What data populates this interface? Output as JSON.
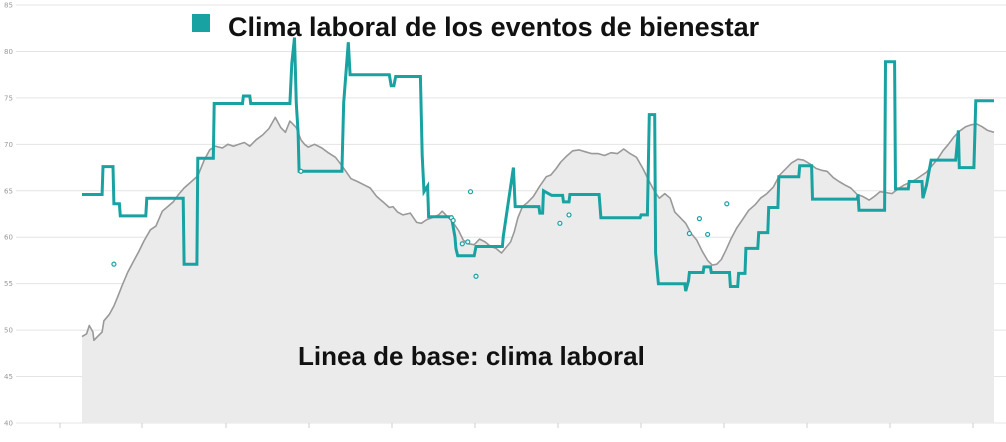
{
  "chart_data": {
    "type": "line",
    "title": "",
    "xlabel": "",
    "ylabel": "",
    "ylim": [
      40,
      85
    ],
    "yticks": [
      40,
      45,
      50,
      55,
      60,
      65,
      70,
      75,
      80,
      85
    ],
    "xlim": [
      0,
      100
    ],
    "grid": true,
    "legend_position": "top",
    "annotation": "Linea de base: clima laboral",
    "colors": {
      "events": "#18a2a2",
      "baseline_line": "#999999",
      "baseline_fill": "#ebebeb"
    },
    "series": [
      {
        "name": "Clima laboral de los eventos de bienestar",
        "style": "step",
        "points": [
          [
            0,
            64.6
          ],
          [
            2.2,
            64.6
          ],
          [
            2.3,
            67.6
          ],
          [
            3.4,
            67.6
          ],
          [
            3.5,
            63.6
          ],
          [
            4.1,
            63.6
          ],
          [
            4.2,
            62.3
          ],
          [
            7.0,
            62.3
          ],
          [
            7.1,
            64.2
          ],
          [
            11.1,
            64.2
          ],
          [
            11.2,
            57.1
          ],
          [
            12.6,
            57.1
          ],
          [
            12.7,
            68.5
          ],
          [
            14.4,
            68.5
          ],
          [
            14.5,
            74.4
          ],
          [
            17.6,
            74.4
          ],
          [
            17.7,
            75.2
          ],
          [
            18.4,
            75.2
          ],
          [
            18.5,
            74.4
          ],
          [
            22.8,
            74.4
          ],
          [
            23.0,
            78.7
          ],
          [
            23.3,
            81.5
          ],
          [
            23.5,
            74.4
          ],
          [
            23.7,
            71.3
          ],
          [
            23.8,
            67.1
          ],
          [
            28.5,
            67.1
          ],
          [
            28.7,
            74.5
          ],
          [
            29.2,
            81.0
          ],
          [
            29.4,
            77.5
          ],
          [
            31.0,
            77.5
          ],
          [
            33.7,
            77.5
          ],
          [
            33.9,
            76.3
          ],
          [
            34.2,
            76.3
          ],
          [
            34.4,
            77.3
          ],
          [
            37.1,
            77.3
          ],
          [
            37.3,
            68.8
          ],
          [
            37.5,
            64.9
          ],
          [
            37.9,
            65.5
          ],
          [
            38.0,
            62.2
          ],
          [
            40.5,
            62.2
          ],
          [
            40.9,
            60.0
          ],
          [
            41.0,
            58.8
          ],
          [
            41.2,
            58.0
          ],
          [
            43.0,
            58.0
          ],
          [
            43.2,
            59.0
          ],
          [
            46.1,
            59.0
          ],
          [
            46.2,
            60.1
          ],
          [
            47.3,
            67.5
          ],
          [
            47.5,
            63.3
          ],
          [
            50.1,
            63.3
          ],
          [
            50.2,
            62.6
          ],
          [
            50.5,
            62.6
          ],
          [
            50.6,
            65.0
          ],
          [
            51.5,
            64.5
          ],
          [
            52.7,
            64.5
          ],
          [
            52.8,
            63.8
          ],
          [
            53.4,
            63.8
          ],
          [
            53.5,
            64.6
          ],
          [
            56.7,
            64.6
          ],
          [
            56.9,
            62.1
          ],
          [
            61.2,
            62.1
          ],
          [
            61.3,
            62.4
          ],
          [
            62.0,
            62.4
          ],
          [
            62.2,
            73.2
          ],
          [
            62.8,
            73.2
          ],
          [
            62.9,
            58.3
          ],
          [
            63.2,
            55.0
          ],
          [
            66.1,
            55.0
          ],
          [
            66.2,
            54.2
          ],
          [
            66.5,
            55.3
          ],
          [
            66.6,
            56.2
          ],
          [
            68.1,
            56.2
          ],
          [
            68.2,
            56.8
          ],
          [
            68.9,
            56.8
          ],
          [
            69.0,
            56.2
          ],
          [
            71.0,
            56.2
          ],
          [
            71.1,
            54.7
          ],
          [
            71.9,
            54.7
          ],
          [
            72.0,
            56.1
          ],
          [
            72.7,
            56.1
          ],
          [
            72.8,
            58.8
          ],
          [
            74.1,
            58.8
          ],
          [
            74.2,
            60.5
          ],
          [
            75.2,
            60.5
          ],
          [
            75.3,
            63.2
          ],
          [
            76.3,
            63.2
          ],
          [
            76.4,
            66.5
          ],
          [
            78.6,
            66.5
          ],
          [
            78.7,
            67.7
          ],
          [
            80.0,
            67.7
          ],
          [
            80.1,
            64.1
          ],
          [
            85.0,
            64.1
          ],
          [
            85.1,
            64.6
          ],
          [
            85.2,
            62.9
          ],
          [
            88.0,
            62.9
          ],
          [
            88.1,
            78.9
          ],
          [
            89.1,
            78.9
          ],
          [
            89.2,
            65.2
          ],
          [
            90.6,
            65.2
          ],
          [
            90.7,
            66.0
          ],
          [
            92.1,
            66.0
          ],
          [
            92.2,
            64.2
          ],
          [
            92.6,
            65.6
          ],
          [
            93.1,
            68.3
          ],
          [
            95.8,
            68.3
          ],
          [
            96.1,
            71.5
          ],
          [
            96.2,
            67.5
          ],
          [
            97.8,
            67.5
          ],
          [
            98.0,
            74.7
          ],
          [
            100,
            74.7
          ]
        ],
        "markers": [
          [
            3.5,
            57.1
          ],
          [
            24.0,
            67.1
          ],
          [
            40.5,
            62.1
          ],
          [
            40.7,
            61.8
          ],
          [
            41.7,
            59.3
          ],
          [
            42.3,
            59.5
          ],
          [
            42.6,
            64.9
          ],
          [
            43.2,
            55.8
          ],
          [
            52.4,
            61.5
          ],
          [
            53.4,
            62.4
          ],
          [
            66.6,
            60.4
          ],
          [
            67.7,
            62.0
          ],
          [
            68.6,
            60.3
          ],
          [
            70.7,
            63.6
          ]
        ]
      },
      {
        "name": "Linea de base: clima laboral",
        "style": "area",
        "points": [
          [
            0,
            49.3
          ],
          [
            0.5,
            49.6
          ],
          [
            0.8,
            50.5
          ],
          [
            1.2,
            49.8
          ],
          [
            1.3,
            48.9
          ],
          [
            1.7,
            49.3
          ],
          [
            2.2,
            49.8
          ],
          [
            2.4,
            51.0
          ],
          [
            3.0,
            51.7
          ],
          [
            3.5,
            52.6
          ],
          [
            4.0,
            53.8
          ],
          [
            4.4,
            54.8
          ],
          [
            5.0,
            56.2
          ],
          [
            5.7,
            57.5
          ],
          [
            6.2,
            58.4
          ],
          [
            6.8,
            59.6
          ],
          [
            7.5,
            60.8
          ],
          [
            8.1,
            61.2
          ],
          [
            8.8,
            62.8
          ],
          [
            9.4,
            63.3
          ],
          [
            10.0,
            63.8
          ],
          [
            10.5,
            64.5
          ],
          [
            11.2,
            65.3
          ],
          [
            11.9,
            65.9
          ],
          [
            12.7,
            66.6
          ],
          [
            13.4,
            68.3
          ],
          [
            14.0,
            69.4
          ],
          [
            14.6,
            69.8
          ],
          [
            15.4,
            69.6
          ],
          [
            16.0,
            70.0
          ],
          [
            16.6,
            69.8
          ],
          [
            17.2,
            70.0
          ],
          [
            17.8,
            70.2
          ],
          [
            18.4,
            69.8
          ],
          [
            19.1,
            70.5
          ],
          [
            19.8,
            71.0
          ],
          [
            20.5,
            71.7
          ],
          [
            21.2,
            72.9
          ],
          [
            21.8,
            71.8
          ],
          [
            22.3,
            71.3
          ],
          [
            22.8,
            72.5
          ],
          [
            23.5,
            71.8
          ],
          [
            24.0,
            70.5
          ],
          [
            24.4,
            70.0
          ],
          [
            24.8,
            69.7
          ],
          [
            25.5,
            70.0
          ],
          [
            26.3,
            69.6
          ],
          [
            27.0,
            69.1
          ],
          [
            27.8,
            68.6
          ],
          [
            28.5,
            67.7
          ],
          [
            29.0,
            67.0
          ],
          [
            29.5,
            66.3
          ],
          [
            30.2,
            66.0
          ],
          [
            31.0,
            65.6
          ],
          [
            31.6,
            65.3
          ],
          [
            32.3,
            64.4
          ],
          [
            33.0,
            63.8
          ],
          [
            33.7,
            63.2
          ],
          [
            34.1,
            63.3
          ],
          [
            34.6,
            62.7
          ],
          [
            35.2,
            62.4
          ],
          [
            36.0,
            62.6
          ],
          [
            36.7,
            61.6
          ],
          [
            37.2,
            61.5
          ],
          [
            37.8,
            61.9
          ],
          [
            38.4,
            62.1
          ],
          [
            39.1,
            62.4
          ],
          [
            39.5,
            62.8
          ],
          [
            40.0,
            62.3
          ],
          [
            40.6,
            61.7
          ],
          [
            41.3,
            60.7
          ],
          [
            41.8,
            59.7
          ],
          [
            42.3,
            59.3
          ],
          [
            43.0,
            59.2
          ],
          [
            43.6,
            59.8
          ],
          [
            44.2,
            59.5
          ],
          [
            44.8,
            59.0
          ],
          [
            45.4,
            58.8
          ],
          [
            46.0,
            58.3
          ],
          [
            46.5,
            58.9
          ],
          [
            47.0,
            59.5
          ],
          [
            47.4,
            60.6
          ],
          [
            47.8,
            62.1
          ],
          [
            48.3,
            63.3
          ],
          [
            48.8,
            63.7
          ],
          [
            49.5,
            64.4
          ],
          [
            50.2,
            65.5
          ],
          [
            50.9,
            66.5
          ],
          [
            51.4,
            66.7
          ],
          [
            52.0,
            67.4
          ],
          [
            52.5,
            68.1
          ],
          [
            53.1,
            68.7
          ],
          [
            53.8,
            69.3
          ],
          [
            54.5,
            69.4
          ],
          [
            55.2,
            69.2
          ],
          [
            55.9,
            69.0
          ],
          [
            56.6,
            69.0
          ],
          [
            57.3,
            68.8
          ],
          [
            58.0,
            69.1
          ],
          [
            58.7,
            69.0
          ],
          [
            59.4,
            69.5
          ],
          [
            60.1,
            69.0
          ],
          [
            60.8,
            68.6
          ],
          [
            61.5,
            67.4
          ],
          [
            62.2,
            66.0
          ],
          [
            62.8,
            64.9
          ],
          [
            63.3,
            64.2
          ],
          [
            63.9,
            64.7
          ],
          [
            64.5,
            64.2
          ],
          [
            65.0,
            62.7
          ],
          [
            65.6,
            62.1
          ],
          [
            66.2,
            61.5
          ],
          [
            66.8,
            60.4
          ],
          [
            67.4,
            59.7
          ],
          [
            68.0,
            58.5
          ],
          [
            68.6,
            57.5
          ],
          [
            69.1,
            57.0
          ],
          [
            69.6,
            57.1
          ],
          [
            70.1,
            57.6
          ],
          [
            70.6,
            58.6
          ],
          [
            71.2,
            59.9
          ],
          [
            71.8,
            61.0
          ],
          [
            72.5,
            62.0
          ],
          [
            73.1,
            62.9
          ],
          [
            73.8,
            63.5
          ],
          [
            74.4,
            64.2
          ],
          [
            75.1,
            64.7
          ],
          [
            75.8,
            65.4
          ],
          [
            76.5,
            66.7
          ],
          [
            77.2,
            67.4
          ],
          [
            77.8,
            68.0
          ],
          [
            78.5,
            68.4
          ],
          [
            79.1,
            68.3
          ],
          [
            79.8,
            67.9
          ],
          [
            80.5,
            67.4
          ],
          [
            81.1,
            67.2
          ],
          [
            81.7,
            67.1
          ],
          [
            82.4,
            66.4
          ],
          [
            83.0,
            66.0
          ],
          [
            83.7,
            65.6
          ],
          [
            84.3,
            65.3
          ],
          [
            85.0,
            64.6
          ],
          [
            85.6,
            64.4
          ],
          [
            86.3,
            64.0
          ],
          [
            86.9,
            64.4
          ],
          [
            87.5,
            64.9
          ],
          [
            88.2,
            64.8
          ],
          [
            88.8,
            64.7
          ],
          [
            89.5,
            65.2
          ],
          [
            90.1,
            65.6
          ],
          [
            90.8,
            65.9
          ],
          [
            91.4,
            66.2
          ],
          [
            92.0,
            66.6
          ],
          [
            92.6,
            67.0
          ],
          [
            93.2,
            67.7
          ],
          [
            93.8,
            68.4
          ],
          [
            94.4,
            69.3
          ],
          [
            95.0,
            70.0
          ],
          [
            95.6,
            70.8
          ],
          [
            96.2,
            71.4
          ],
          [
            96.9,
            71.9
          ],
          [
            97.5,
            72.1
          ],
          [
            98.1,
            72.2
          ],
          [
            98.7,
            71.9
          ],
          [
            99.3,
            71.5
          ],
          [
            100,
            71.3
          ]
        ]
      }
    ]
  }
}
